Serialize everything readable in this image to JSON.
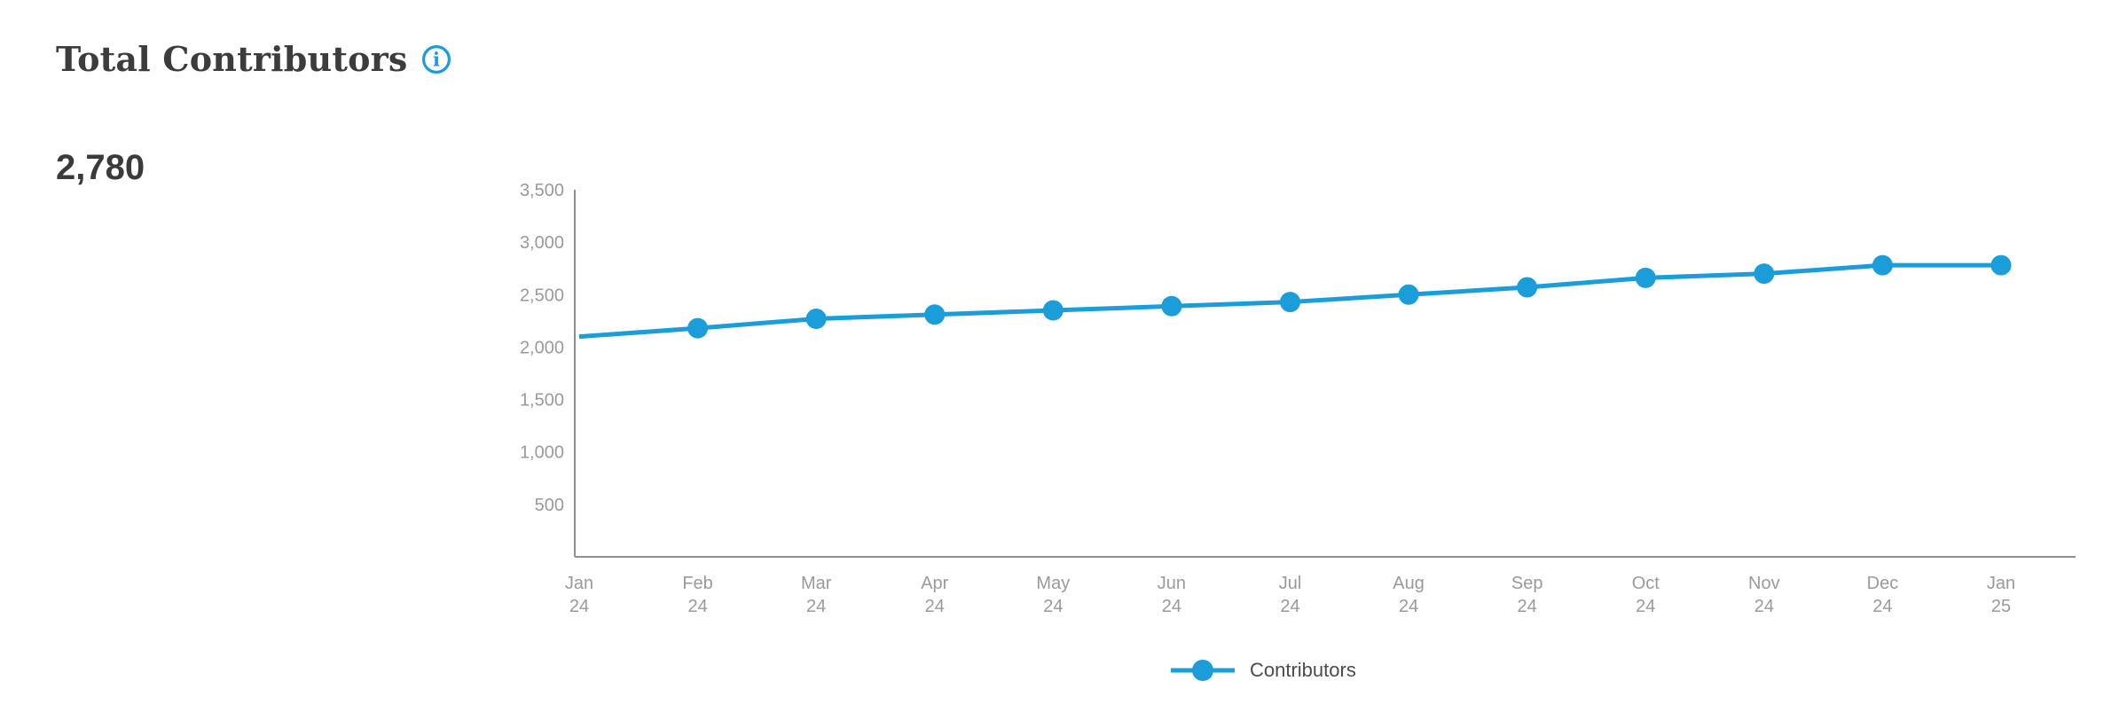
{
  "header": {
    "title": "Total Contributors"
  },
  "kpi": {
    "value": "2,780"
  },
  "colors": {
    "accent_blue": "#1A9DD9",
    "axis_line": "#8f8f8f",
    "tick_text": "#9a9a9a",
    "title_text": "#3c3c3c",
    "legend_text": "#4c4c4c"
  },
  "icons": {
    "info": "info-circle-icon"
  },
  "legend": {
    "series_label": "Contributors"
  },
  "chart_data": {
    "type": "line",
    "title": "Total Contributors",
    "categories": [
      "Jan 24",
      "Feb 24",
      "Mar 24",
      "Apr 24",
      "May 24",
      "Jun 24",
      "Jul 24",
      "Aug 24",
      "Sep 24",
      "Oct 24",
      "Nov 24",
      "Dec 24",
      "Jan 25"
    ],
    "series": [
      {
        "name": "Contributors",
        "values": [
          2100,
          2180,
          2270,
          2310,
          2350,
          2390,
          2430,
          2500,
          2570,
          2660,
          2700,
          2780,
          2780
        ]
      }
    ],
    "xlabel": "",
    "ylabel": "",
    "ylim": [
      0,
      3500
    ],
    "yticks": [
      500,
      1000,
      1500,
      2000,
      2500,
      3000,
      3500
    ],
    "grid": false,
    "markers": true,
    "first_point_marker_hidden": true,
    "legend_position": "bottom",
    "line_color": "#1A9DD9"
  }
}
